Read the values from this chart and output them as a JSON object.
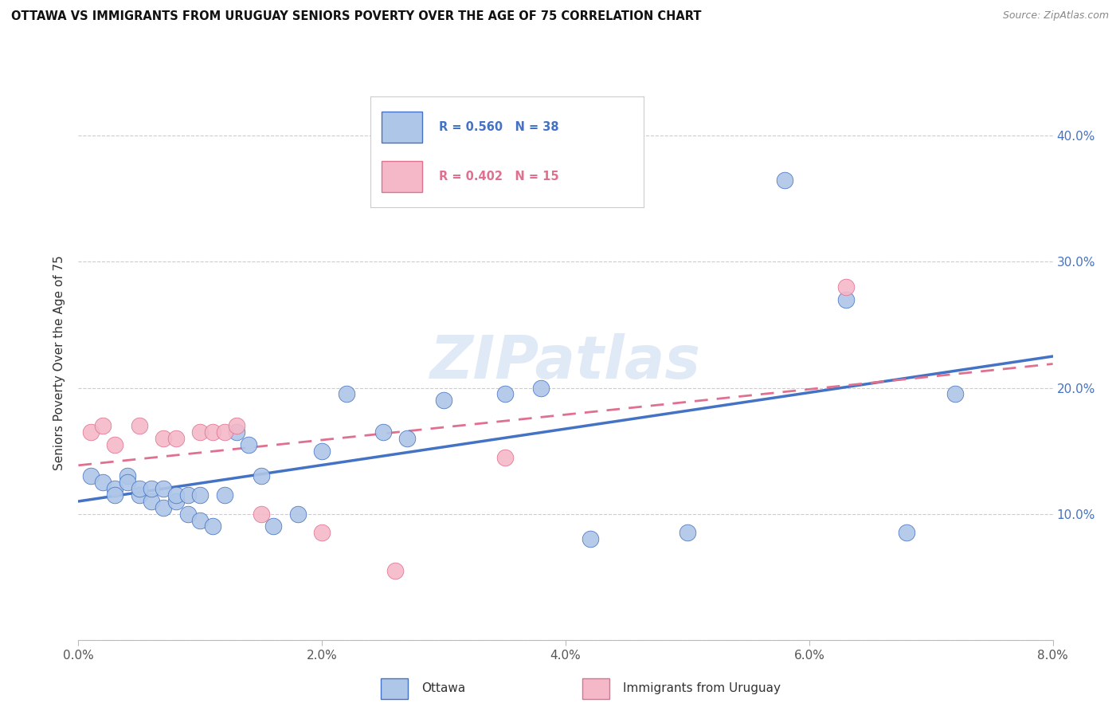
{
  "title": "OTTAWA VS IMMIGRANTS FROM URUGUAY SENIORS POVERTY OVER THE AGE OF 75 CORRELATION CHART",
  "source": "Source: ZipAtlas.com",
  "ylabel": "Seniors Poverty Over the Age of 75",
  "legend_labels": [
    "Ottawa",
    "Immigrants from Uruguay"
  ],
  "ottawa_R": "0.560",
  "ottawa_N": "38",
  "uruguay_R": "0.402",
  "uruguay_N": "15",
  "xlim": [
    0.0,
    0.08
  ],
  "ylim": [
    0.0,
    0.44
  ],
  "x_tick_positions": [
    0.0,
    0.02,
    0.04,
    0.06,
    0.08
  ],
  "x_tick_labels": [
    "0.0%",
    "2.0%",
    "4.0%",
    "6.0%",
    "8.0%"
  ],
  "y_ticks": [
    0.0,
    0.1,
    0.2,
    0.3,
    0.4
  ],
  "y_tick_labels": [
    "",
    "10.0%",
    "20.0%",
    "30.0%",
    "40.0%"
  ],
  "ottawa_color": "#aec6e8",
  "ottawa_line_color": "#4472c4",
  "uruguay_color": "#f4b8c8",
  "uruguay_line_color": "#e07090",
  "watermark": "ZIPatlas",
  "ottawa_x": [
    0.001,
    0.002,
    0.003,
    0.003,
    0.004,
    0.004,
    0.005,
    0.005,
    0.006,
    0.006,
    0.007,
    0.007,
    0.008,
    0.008,
    0.009,
    0.009,
    0.01,
    0.01,
    0.011,
    0.012,
    0.013,
    0.014,
    0.015,
    0.016,
    0.018,
    0.02,
    0.022,
    0.025,
    0.027,
    0.03,
    0.035,
    0.038,
    0.042,
    0.05,
    0.058,
    0.063,
    0.068,
    0.072
  ],
  "ottawa_y": [
    0.13,
    0.125,
    0.12,
    0.115,
    0.13,
    0.125,
    0.115,
    0.12,
    0.11,
    0.12,
    0.105,
    0.12,
    0.11,
    0.115,
    0.1,
    0.115,
    0.095,
    0.115,
    0.09,
    0.115,
    0.165,
    0.155,
    0.13,
    0.09,
    0.1,
    0.15,
    0.195,
    0.165,
    0.16,
    0.19,
    0.195,
    0.2,
    0.08,
    0.085,
    0.365,
    0.27,
    0.085,
    0.195
  ],
  "uruguay_x": [
    0.001,
    0.002,
    0.003,
    0.005,
    0.007,
    0.008,
    0.01,
    0.011,
    0.012,
    0.013,
    0.015,
    0.02,
    0.026,
    0.035,
    0.063
  ],
  "uruguay_y": [
    0.165,
    0.17,
    0.155,
    0.17,
    0.16,
    0.16,
    0.165,
    0.165,
    0.165,
    0.17,
    0.1,
    0.085,
    0.055,
    0.145,
    0.28
  ]
}
